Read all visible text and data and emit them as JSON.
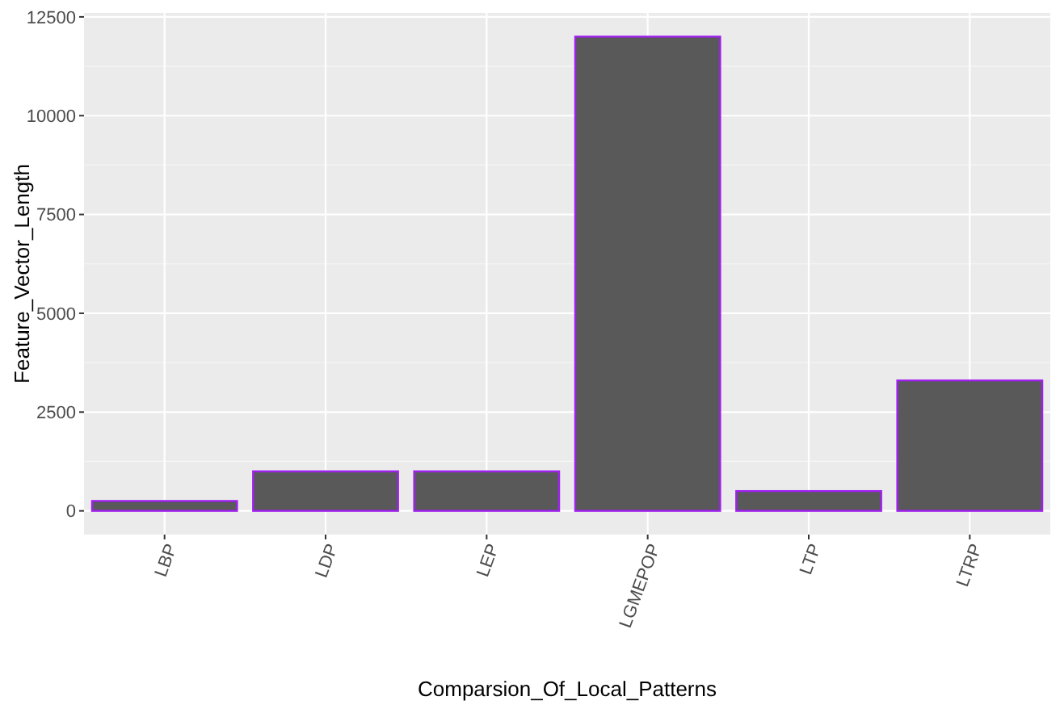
{
  "chart_data": {
    "type": "bar",
    "xlabel": "Comparsion_Of_Local_Patterns",
    "ylabel": "Feature_Vector_Length",
    "categories": [
      "LBP",
      "LDP",
      "LEP",
      "LGMEPOP",
      "LTP",
      "LTRP"
    ],
    "values": [
      250,
      1000,
      1000,
      12000,
      500,
      3300
    ],
    "color": "#595959",
    "ylim": [
      -600,
      12600
    ],
    "yticks": [
      0,
      2500,
      5000,
      7500,
      10000,
      12500
    ],
    "grid": true
  }
}
